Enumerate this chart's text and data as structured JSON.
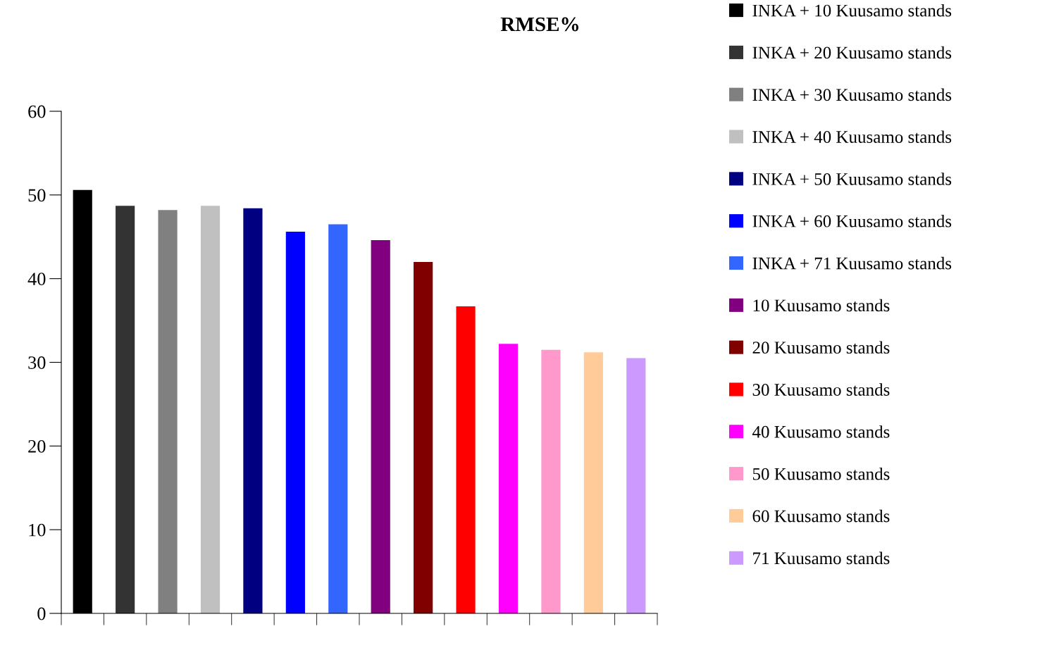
{
  "chart_data": {
    "type": "bar",
    "title": "RMSE%",
    "categories": [
      null,
      null,
      null,
      null,
      null,
      null,
      null,
      null,
      null,
      null,
      null,
      null,
      null,
      null
    ],
    "series": [
      {
        "name": "INKA + 10 Kuusamo stands",
        "color": "#000000",
        "values": [
          50.6,
          null,
          null,
          null,
          null,
          null,
          null,
          null,
          null,
          null,
          null,
          null,
          null,
          null
        ]
      },
      {
        "name": "INKA + 20 Kuusamo stands",
        "color": "#333333",
        "values": [
          null,
          48.7,
          null,
          null,
          null,
          null,
          null,
          null,
          null,
          null,
          null,
          null,
          null,
          null
        ]
      },
      {
        "name": "INKA + 30 Kuusamo stands",
        "color": "#808080",
        "values": [
          null,
          null,
          48.2,
          null,
          null,
          null,
          null,
          null,
          null,
          null,
          null,
          null,
          null,
          null
        ]
      },
      {
        "name": "INKA + 40 Kuusamo stands",
        "color": "#c0c0c0",
        "values": [
          null,
          null,
          null,
          48.7,
          null,
          null,
          null,
          null,
          null,
          null,
          null,
          null,
          null,
          null
        ]
      },
      {
        "name": "INKA + 50 Kuusamo stands",
        "color": "#000080",
        "values": [
          null,
          null,
          null,
          null,
          48.4,
          null,
          null,
          null,
          null,
          null,
          null,
          null,
          null,
          null
        ]
      },
      {
        "name": "INKA + 60 Kuusamo stands",
        "color": "#0000ff",
        "values": [
          null,
          null,
          null,
          null,
          null,
          45.6,
          null,
          null,
          null,
          null,
          null,
          null,
          null,
          null
        ]
      },
      {
        "name": "INKA + 71 Kuusamo stands",
        "color": "#3366ff",
        "values": [
          null,
          null,
          null,
          null,
          null,
          null,
          46.5,
          null,
          null,
          null,
          null,
          null,
          null,
          null
        ]
      },
      {
        "name": "10 Kuusamo stands",
        "color": "#800080",
        "values": [
          null,
          null,
          null,
          null,
          null,
          null,
          null,
          44.6,
          null,
          null,
          null,
          null,
          null,
          null
        ]
      },
      {
        "name": "20 Kuusamo stands",
        "color": "#800000",
        "values": [
          null,
          null,
          null,
          null,
          null,
          null,
          null,
          null,
          42.0,
          null,
          null,
          null,
          null,
          null
        ]
      },
      {
        "name": "30 Kuusamo stands",
        "color": "#ff0000",
        "values": [
          null,
          null,
          null,
          null,
          null,
          null,
          null,
          null,
          null,
          36.7,
          null,
          null,
          null,
          null
        ]
      },
      {
        "name": "40 Kuusamo stands",
        "color": "#ff00ff",
        "values": [
          null,
          null,
          null,
          null,
          null,
          null,
          null,
          null,
          null,
          null,
          32.2,
          null,
          null,
          null
        ]
      },
      {
        "name": "50 Kuusamo stands",
        "color": "#ff99cc",
        "values": [
          null,
          null,
          null,
          null,
          null,
          null,
          null,
          null,
          null,
          null,
          null,
          31.5,
          null,
          null
        ]
      },
      {
        "name": "60 Kuusamo stands",
        "color": "#ffcc99",
        "values": [
          null,
          null,
          null,
          null,
          null,
          null,
          null,
          null,
          null,
          null,
          null,
          null,
          31.2,
          null
        ]
      },
      {
        "name": "71 Kuusamo stands",
        "color": "#cc99ff",
        "values": [
          null,
          null,
          null,
          null,
          null,
          null,
          null,
          null,
          null,
          null,
          null,
          null,
          null,
          30.5
        ]
      }
    ],
    "ylim": [
      0,
      60
    ],
    "yticks": [
      0,
      10,
      20,
      30,
      40,
      50,
      60
    ],
    "grid": false,
    "legend": "right"
  }
}
